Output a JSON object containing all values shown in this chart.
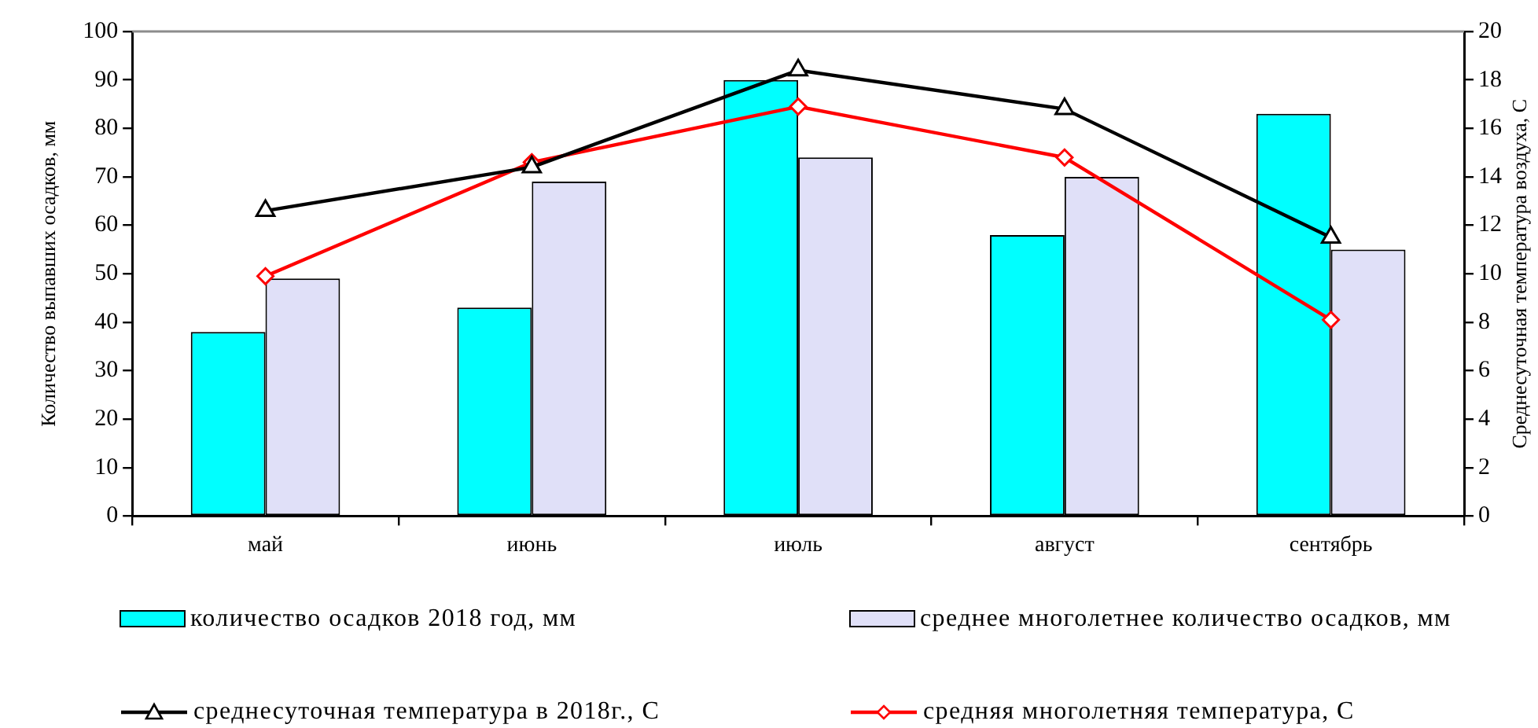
{
  "chart_data": {
    "type": "bar",
    "categories": [
      "май",
      "июнь",
      "июль",
      "август",
      "сентябрь"
    ],
    "ylabel": "Количество выпавших осадков, мм",
    "y2label": "Среднесуточная температура воздуха, С",
    "ylim": [
      0,
      100
    ],
    "yticks": [
      0,
      10,
      20,
      30,
      40,
      50,
      60,
      70,
      80,
      90,
      100
    ],
    "y2lim": [
      0,
      20
    ],
    "y2ticks": [
      0,
      2,
      4,
      6,
      8,
      10,
      12,
      14,
      16,
      18,
      20
    ],
    "legend": "bottom",
    "series": [
      {
        "name": "количество осадков 2018 год, мм",
        "color": "#00ffff",
        "values": [
          38,
          43,
          90,
          58,
          83
        ]
      },
      {
        "name": "среднее многолетнее количество осадков, мм",
        "color": "#e0e0f8",
        "values": [
          49,
          69,
          74,
          70,
          55
        ]
      },
      {
        "name": "среднесуточная температура в 2018г., С",
        "type": "line",
        "axis": "y2",
        "color": "#000000",
        "marker": "triangle",
        "values": [
          12.6,
          14.4,
          18.4,
          16.8,
          11.5
        ]
      },
      {
        "name": "средняя многолетняя температура, С",
        "type": "line",
        "axis": "y2",
        "color": "#ff0000",
        "marker": "diamond",
        "values": [
          9.9,
          14.6,
          16.9,
          14.8,
          8.1
        ]
      }
    ]
  }
}
